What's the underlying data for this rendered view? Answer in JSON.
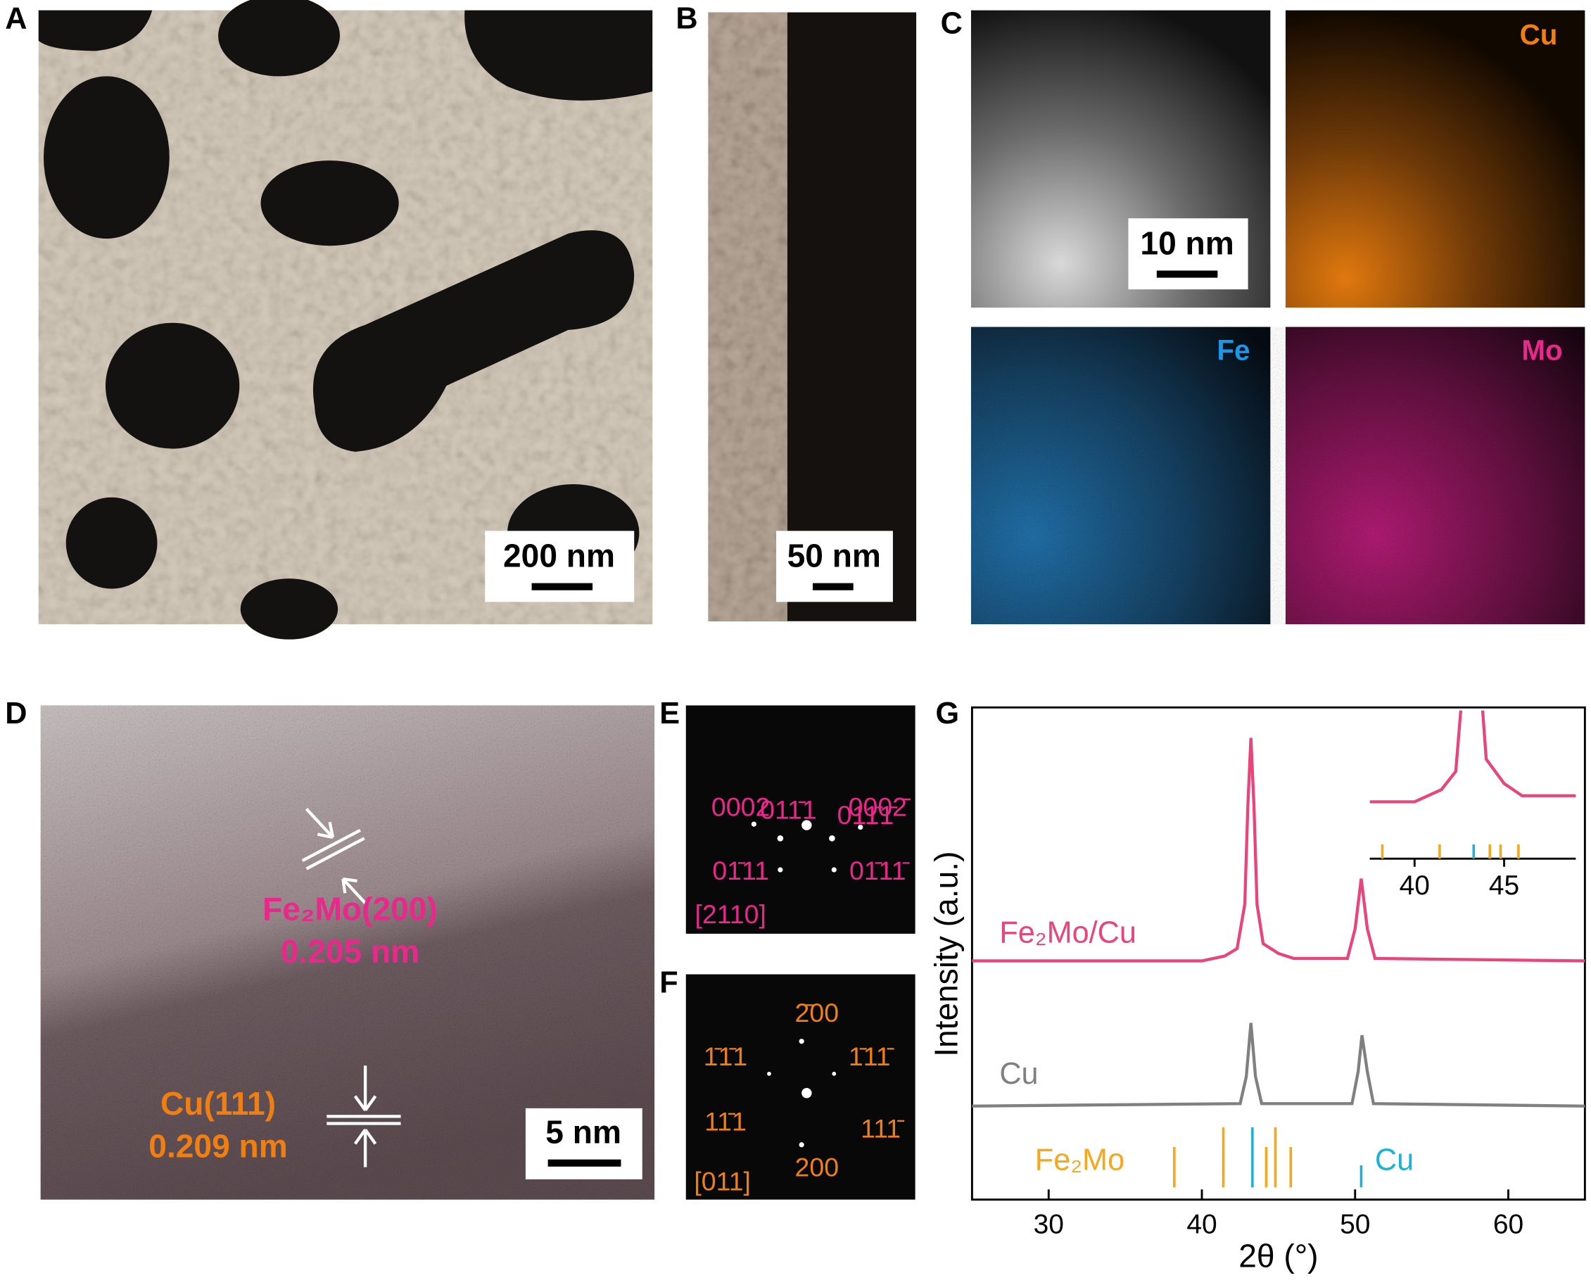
{
  "panels": {
    "A": {
      "label": "A",
      "scale_bar": "200 nm"
    },
    "B": {
      "label": "B",
      "scale_bar": "50 nm"
    },
    "C": {
      "label": "C",
      "scale_bar": "10 nm",
      "maps": [
        "Cu",
        "Fe",
        "Mo"
      ]
    },
    "D": {
      "label": "D",
      "scale_bar": "5 nm",
      "annotations": [
        "Fe₂Mo(200)",
        "0.205 nm",
        "Cu(111)",
        "0.209 nm"
      ]
    },
    "E": {
      "label": "E",
      "spots": [
        "011̄1",
        "011̄1̄",
        "0002",
        "0002̄",
        "01̄11",
        "01̄11̄"
      ],
      "zone": "[2110]"
    },
    "F": {
      "label": "F",
      "spots": [
        "2̄00",
        "1̄1̄1",
        "1̄11̄",
        "11̄1",
        "111̄",
        "200"
      ],
      "zone": "[011]"
    },
    "G": {
      "label": "G"
    }
  },
  "chart_data": {
    "type": "line",
    "xlabel": "2θ (°)",
    "ylabel": "Intensity (a.u.)",
    "xlim": [
      25,
      65
    ],
    "xticks": [
      30,
      40,
      50,
      60
    ],
    "ylim": [
      0,
      100
    ],
    "series": [
      {
        "name": "Fe₂Mo/Cu",
        "color": "#e8457a",
        "x": [
          25,
          40,
          41.5,
          42.3,
          42.8,
          43.0,
          43.2,
          43.4,
          43.6,
          44,
          45,
          46,
          49.5,
          50.0,
          50.4,
          50.8,
          51.3,
          65
        ],
        "values": [
          48.5,
          48.5,
          49.5,
          51,
          60,
          80,
          93.8,
          80,
          60,
          52,
          50,
          49,
          49,
          55,
          65.2,
          55,
          49,
          48.5
        ]
      },
      {
        "name": "Cu",
        "color": "#808080",
        "x": [
          25,
          42.5,
          42.9,
          43.2,
          43.5,
          43.9,
          49.8,
          50.2,
          50.45,
          50.8,
          51.2,
          65
        ],
        "values": [
          19,
          19.5,
          25,
          35.9,
          25,
          19.5,
          19.5,
          26,
          33.4,
          26,
          19.5,
          19
        ]
      },
      {
        "name": "Fe₂Mo",
        "color": "#f5a81c",
        "style": "stick",
        "x": [
          38.2,
          41.4,
          44.2,
          44.8,
          45.8
        ],
        "values": [
          8.2,
          12.2,
          8.2,
          12.2,
          8.2
        ]
      },
      {
        "name": "Cu",
        "color": "#1fb2d6",
        "style": "stick",
        "x": [
          43.3,
          50.4
        ],
        "values": [
          12.2,
          4.5
        ]
      }
    ],
    "inset": {
      "xlim": [
        37.5,
        49
      ],
      "xticks": [
        40,
        45
      ],
      "ylim": [
        46,
        56
      ]
    }
  }
}
